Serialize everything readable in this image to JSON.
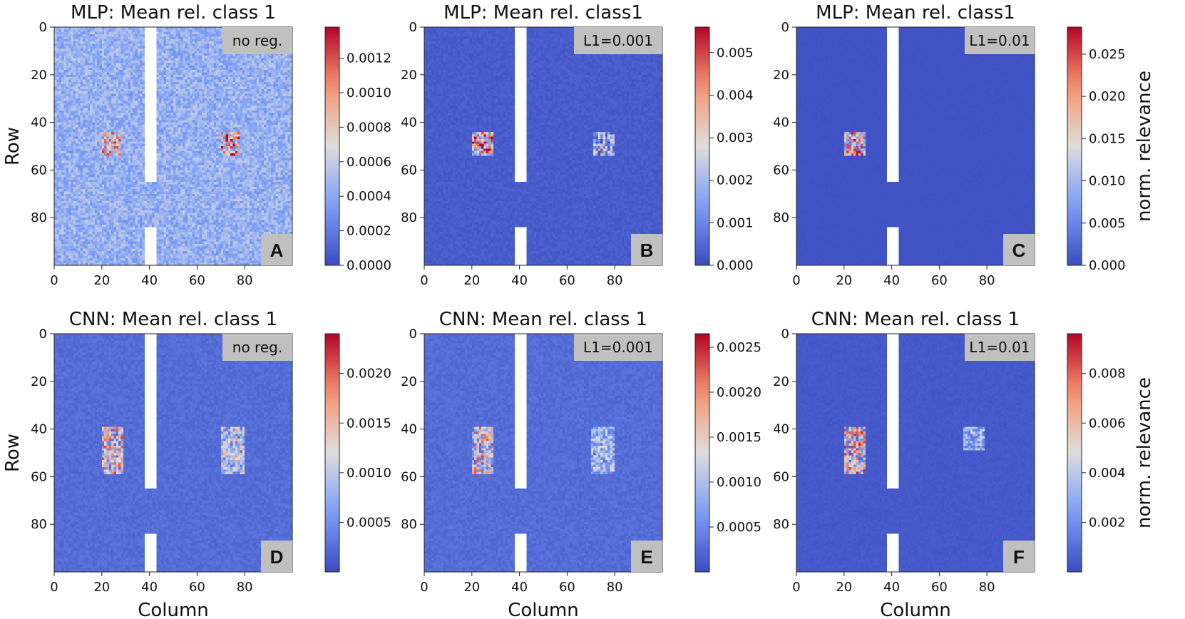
{
  "colors": {
    "background_low": "#3b4cc0",
    "mid": "#dddddd",
    "high": "#b40426",
    "label_box": "#c0c0c0",
    "gap": "#ffffff"
  },
  "chart_data": [
    {
      "type": "heatmap",
      "panel": "A",
      "title": "MLP: Mean rel. class 1",
      "reg_label": "no reg.",
      "xlabel": "",
      "ylabel": "Row",
      "xlim": [
        0,
        100
      ],
      "ylim": [
        0,
        100
      ],
      "x_ticks": [
        0,
        20,
        40,
        60,
        80
      ],
      "y_ticks": [
        0,
        20,
        40,
        60,
        80
      ],
      "colorbar": {
        "ticks": [
          "0.0000",
          "0.0002",
          "0.0004",
          "0.0006",
          "0.0008",
          "0.0010",
          "0.0012"
        ],
        "tick_values": [
          0,
          0.0002,
          0.0004,
          0.0006,
          0.0008,
          0.001,
          0.0012
        ],
        "vmax": 0.00138,
        "label": ""
      },
      "background_level": 0.32,
      "noise": 0.22,
      "regions": [
        {
          "col_range": [
            20,
            28
          ],
          "row_range": [
            44,
            54
          ],
          "level": 0.55,
          "noise": 0.35
        },
        {
          "col_range": [
            70,
            78
          ],
          "row_range": [
            44,
            54
          ],
          "level": 0.6,
          "noise": 0.45
        }
      ],
      "masked_columns": [
        38,
        43
      ],
      "masked_rows": [
        [
          0,
          65
        ],
        [
          84,
          100
        ]
      ]
    },
    {
      "type": "heatmap",
      "panel": "B",
      "title": "MLP: Mean rel. class1",
      "reg_label": "L1=0.001",
      "xlabel": "",
      "ylabel": "",
      "xlim": [
        0,
        100
      ],
      "ylim": [
        0,
        100
      ],
      "x_ticks": [
        0,
        20,
        40,
        60,
        80
      ],
      "y_ticks": [
        0,
        20,
        40,
        60,
        80
      ],
      "colorbar": {
        "ticks": [
          "0.000",
          "0.001",
          "0.002",
          "0.003",
          "0.004",
          "0.005"
        ],
        "tick_values": [
          0,
          0.001,
          0.002,
          0.003,
          0.004,
          0.005
        ],
        "vmax": 0.0056,
        "label": ""
      },
      "background_level": 0.05,
      "noise": 0.04,
      "regions": [
        {
          "col_range": [
            20,
            29
          ],
          "row_range": [
            44,
            54
          ],
          "level": 0.58,
          "noise": 0.45
        },
        {
          "col_range": [
            71,
            80
          ],
          "row_range": [
            44,
            54
          ],
          "level": 0.32,
          "noise": 0.35
        }
      ],
      "masked_columns": [
        38,
        43
      ],
      "masked_rows": [
        [
          0,
          65
        ],
        [
          84,
          100
        ]
      ]
    },
    {
      "type": "heatmap",
      "panel": "C",
      "title": "MLP: Mean rel. class1",
      "reg_label": "L1=0.01",
      "xlabel": "",
      "ylabel": "",
      "xlim": [
        0,
        100
      ],
      "ylim": [
        0,
        100
      ],
      "x_ticks": [
        0,
        20,
        40,
        60,
        80
      ],
      "y_ticks": [
        0,
        20,
        40,
        60,
        80
      ],
      "colorbar": {
        "ticks": [
          "0.000",
          "0.005",
          "0.010",
          "0.015",
          "0.020",
          "0.025"
        ],
        "tick_values": [
          0,
          0.005,
          0.01,
          0.015,
          0.02,
          0.025
        ],
        "vmax": 0.0282,
        "label": "norm. relevance"
      },
      "background_level": 0.02,
      "noise": 0.01,
      "regions": [
        {
          "col_range": [
            20,
            29
          ],
          "row_range": [
            44,
            54
          ],
          "level": 0.55,
          "noise": 0.45
        }
      ],
      "masked_columns": [
        38,
        43
      ],
      "masked_rows": [
        [
          0,
          65
        ],
        [
          84,
          100
        ]
      ]
    },
    {
      "type": "heatmap",
      "panel": "D",
      "title": "CNN: Mean rel. class 1",
      "reg_label": "no reg.",
      "xlabel": "Column",
      "ylabel": "Row",
      "xlim": [
        0,
        100
      ],
      "ylim": [
        0,
        100
      ],
      "x_ticks": [
        0,
        20,
        40,
        60,
        80
      ],
      "y_ticks": [
        0,
        20,
        40,
        60,
        80
      ],
      "colorbar": {
        "ticks": [
          "0.0005",
          "0.0010",
          "0.0015",
          "0.0020"
        ],
        "tick_values": [
          0.0005,
          0.001,
          0.0015,
          0.002
        ],
        "vmax": 0.0024,
        "label": ""
      },
      "background_level": 0.1,
      "noise": 0.05,
      "regions": [
        {
          "col_range": [
            20,
            29
          ],
          "row_range": [
            39,
            59
          ],
          "level": 0.48,
          "noise": 0.42
        },
        {
          "col_range": [
            70,
            80
          ],
          "row_range": [
            39,
            59
          ],
          "level": 0.4,
          "noise": 0.3
        }
      ],
      "masked_columns": [
        38,
        43
      ],
      "masked_rows": [
        [
          0,
          65
        ],
        [
          84,
          100
        ]
      ]
    },
    {
      "type": "heatmap",
      "panel": "E",
      "title": "CNN: Mean rel. class 1",
      "reg_label": "L1=0.001",
      "xlabel": "Column",
      "ylabel": "",
      "xlim": [
        0,
        100
      ],
      "ylim": [
        0,
        100
      ],
      "x_ticks": [
        0,
        20,
        40,
        60,
        80
      ],
      "y_ticks": [
        0,
        20,
        40,
        60,
        80
      ],
      "colorbar": {
        "ticks": [
          "0.0005",
          "0.0010",
          "0.0015",
          "0.0020",
          "0.0025"
        ],
        "tick_values": [
          0.0005,
          0.001,
          0.0015,
          0.002,
          0.0025
        ],
        "vmax": 0.00265,
        "label": ""
      },
      "background_level": 0.1,
      "noise": 0.05,
      "regions": [
        {
          "col_range": [
            20,
            29
          ],
          "row_range": [
            39,
            59
          ],
          "level": 0.45,
          "noise": 0.4
        },
        {
          "col_range": [
            70,
            80
          ],
          "row_range": [
            39,
            59
          ],
          "level": 0.33,
          "noise": 0.22
        }
      ],
      "masked_columns": [
        38,
        43
      ],
      "masked_rows": [
        [
          0,
          65
        ],
        [
          84,
          100
        ]
      ]
    },
    {
      "type": "heatmap",
      "panel": "F",
      "title": "CNN: Mean rel. class 1",
      "reg_label": "L1=0.01",
      "xlabel": "Column",
      "ylabel": "",
      "xlim": [
        0,
        100
      ],
      "ylim": [
        0,
        100
      ],
      "x_ticks": [
        0,
        20,
        40,
        60,
        80
      ],
      "y_ticks": [
        0,
        20,
        40,
        60,
        80
      ],
      "colorbar": {
        "ticks": [
          "0.002",
          "0.004",
          "0.006",
          "0.008"
        ],
        "tick_values": [
          0.002,
          0.004,
          0.006,
          0.008
        ],
        "vmax": 0.0096,
        "label": "norm. relevance"
      },
      "background_level": 0.04,
      "noise": 0.02,
      "regions": [
        {
          "col_range": [
            20,
            29
          ],
          "row_range": [
            39,
            59
          ],
          "level": 0.5,
          "noise": 0.45
        },
        {
          "col_range": [
            70,
            79
          ],
          "row_range": [
            39,
            49
          ],
          "level": 0.3,
          "noise": 0.18
        }
      ],
      "masked_columns": [
        38,
        43
      ],
      "masked_rows": [
        [
          0,
          65
        ],
        [
          84,
          100
        ]
      ]
    }
  ]
}
